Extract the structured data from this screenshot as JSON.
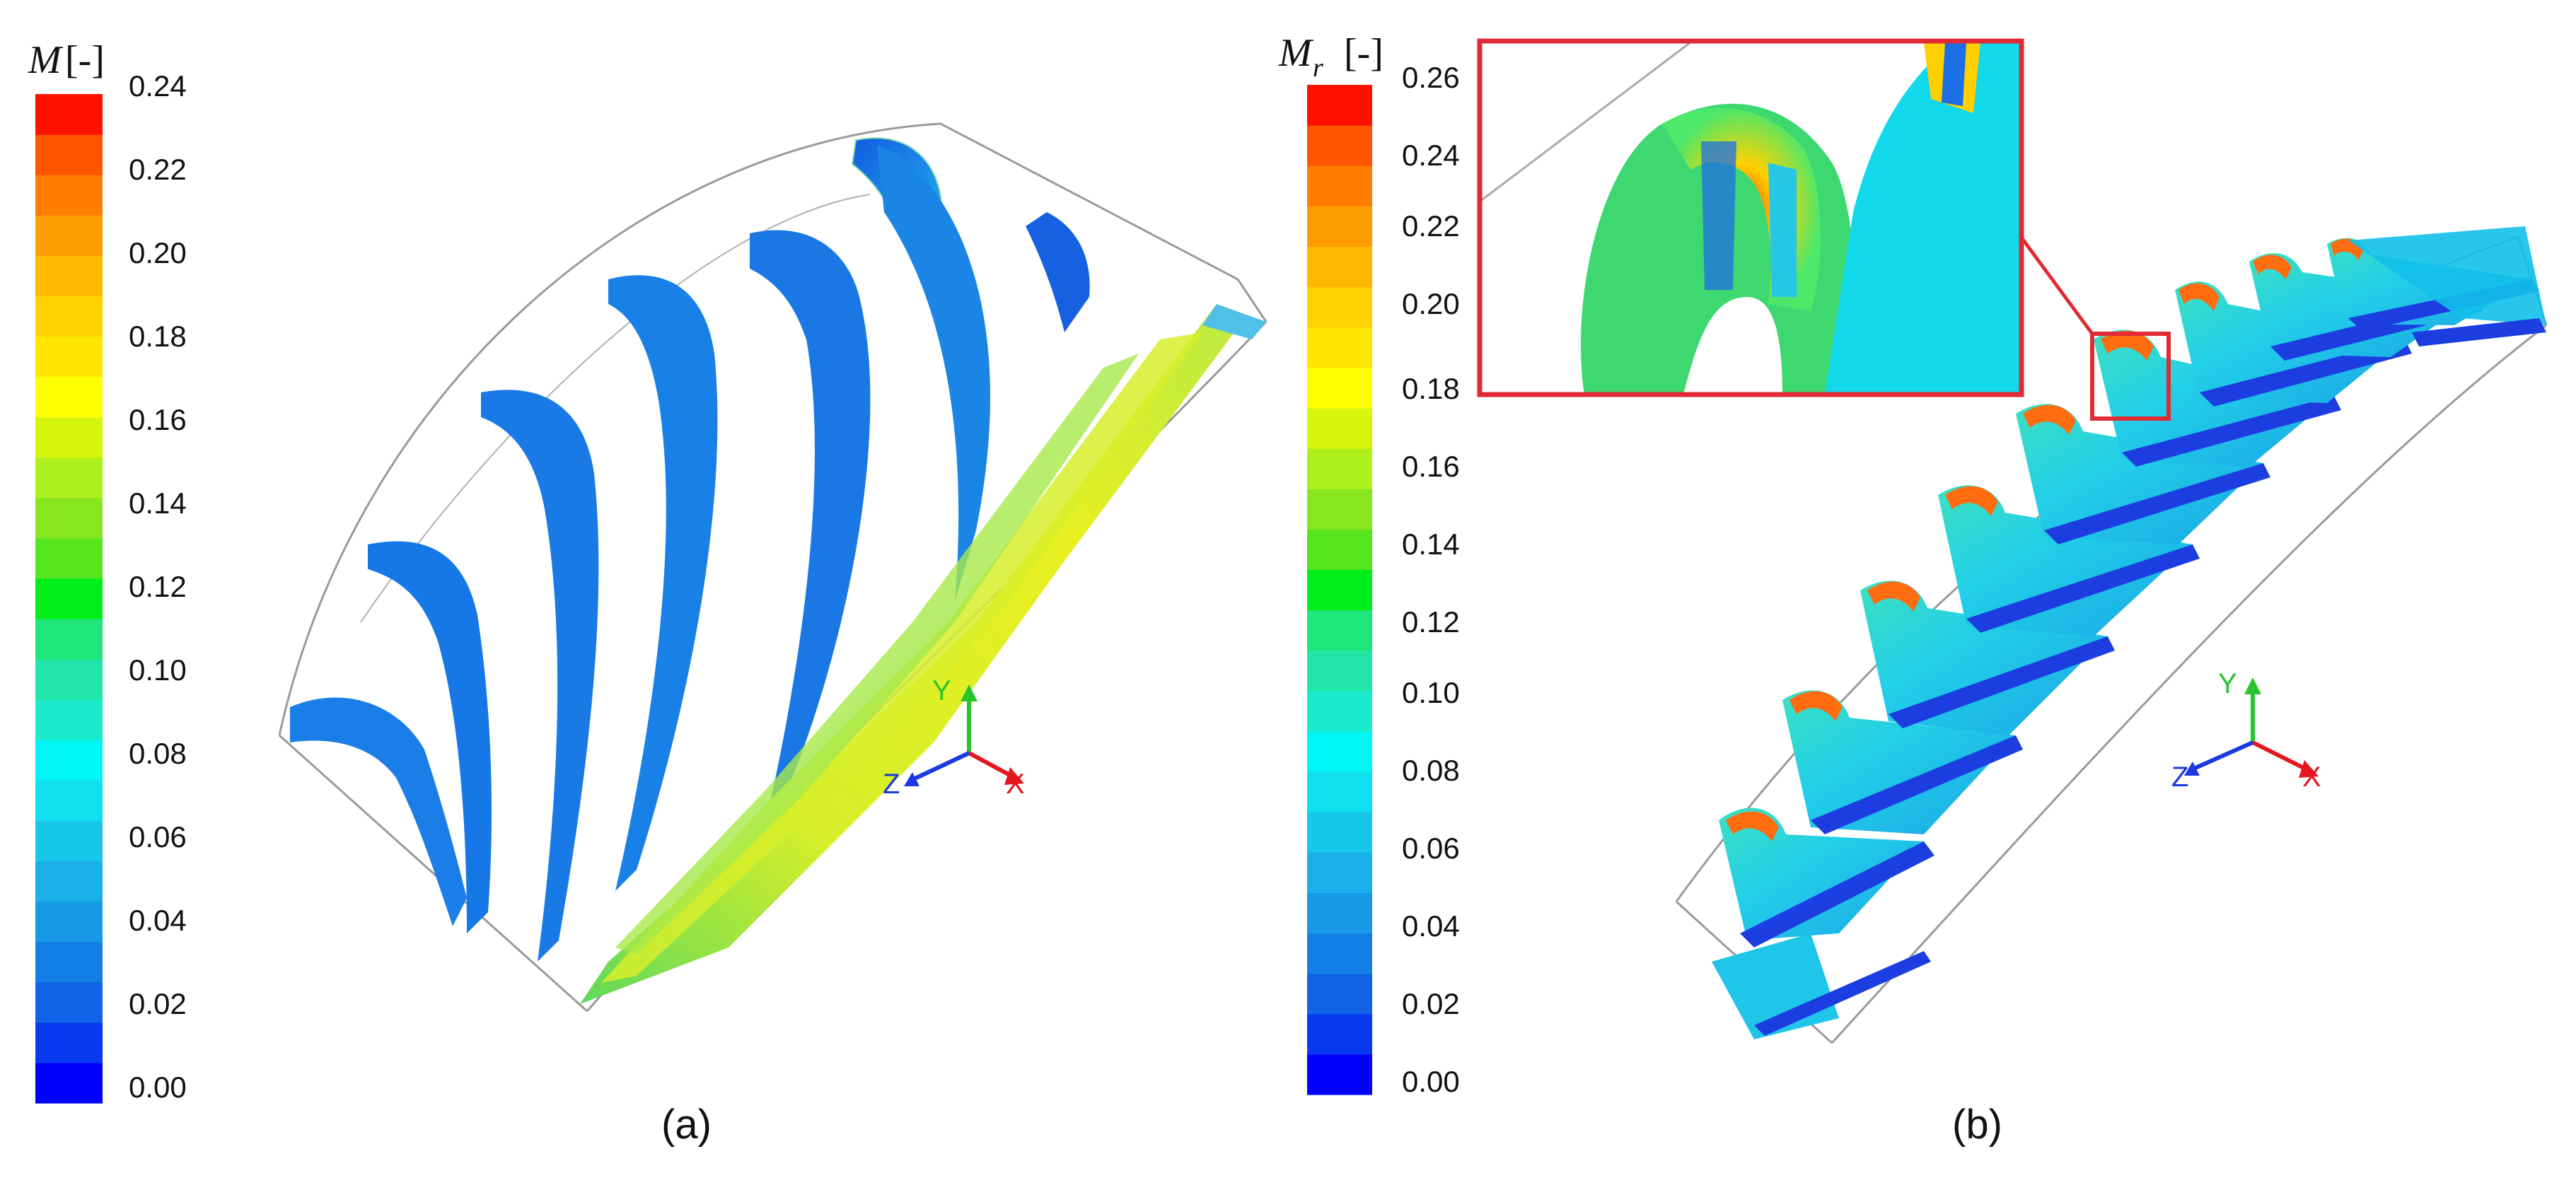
{
  "colorbar_a": {
    "title_symbol": "M",
    "title_unit": "[-]",
    "ticks": [
      "0.24",
      "0.22",
      "0.20",
      "0.18",
      "0.16",
      "0.14",
      "0.12",
      "0.10",
      "0.08",
      "0.06",
      "0.04",
      "0.02",
      "0.00"
    ]
  },
  "colorbar_b": {
    "title_symbol": "M",
    "title_sub": "r",
    "title_unit": "[-]",
    "ticks": [
      "0.26",
      "0.24",
      "0.22",
      "0.20",
      "0.18",
      "0.16",
      "0.14",
      "0.12",
      "0.10",
      "0.08",
      "0.06",
      "0.04",
      "0.02",
      "0.00"
    ]
  },
  "captions": {
    "a": "(a)",
    "b": "(b)"
  },
  "axes": {
    "x": "X",
    "y": "Y",
    "z": "Z"
  },
  "colors": {
    "colormap": [
      "#0000ff",
      "#0a3af0",
      "#1163e8",
      "#137fe6",
      "#1699e6",
      "#19afe8",
      "#16c7ea",
      "#10dfef",
      "#00f5f5",
      "#19ebcc",
      "#22e6a7",
      "#1fe67a",
      "#00ef1a",
      "#55e61d",
      "#88e61f",
      "#aef01c",
      "#d6f50c",
      "#ffff00",
      "#ffe600",
      "#ffd200",
      "#ffb800",
      "#ff9e00",
      "#ff7e00",
      "#ff5500",
      "#ff1100"
    ],
    "blade_blue": "#1a73e0",
    "highlight_red": "#e12a34",
    "axis_x": "#e6161e",
    "axis_y": "#27c52b",
    "axis_z": "#1b39e0"
  }
}
